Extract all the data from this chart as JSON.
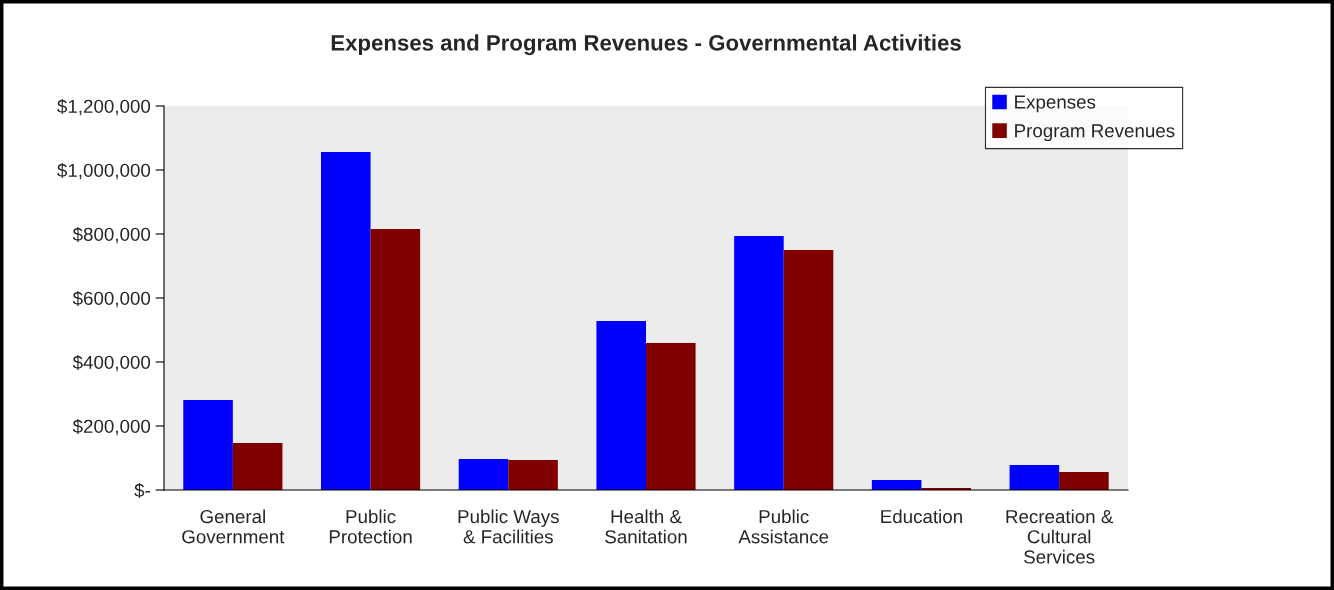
{
  "chart_data": {
    "type": "bar",
    "title": "Expenses and Program Revenues - Governmental Activities",
    "categories": [
      "General\nGovernment",
      "Public\nProtection",
      "Public Ways\n& Facilities",
      "Health &\nSanitation",
      "Public\nAssistance",
      "Education",
      "Recreation &\nCultural\nServices"
    ],
    "series": [
      {
        "name": "Expenses",
        "color": "#0000ff",
        "values": [
          281000,
          1056000,
          97000,
          528000,
          794000,
          31000,
          78000
        ]
      },
      {
        "name": "Program Revenues",
        "color": "#800000",
        "values": [
          147000,
          816000,
          94000,
          459000,
          750000,
          6000,
          56000
        ]
      }
    ],
    "ylim": [
      0,
      1200000
    ],
    "yticks": [
      {
        "value": 0,
        "label": "$-"
      },
      {
        "value": 200000,
        "label": "$200,000"
      },
      {
        "value": 400000,
        "label": "$400,000"
      },
      {
        "value": 600000,
        "label": "$600,000"
      },
      {
        "value": 800000,
        "label": "$800,000"
      },
      {
        "value": 1000000,
        "label": "$1,000,000"
      },
      {
        "value": 1200000,
        "label": "$1,200,000"
      }
    ],
    "grid": false,
    "legend": "top right"
  }
}
